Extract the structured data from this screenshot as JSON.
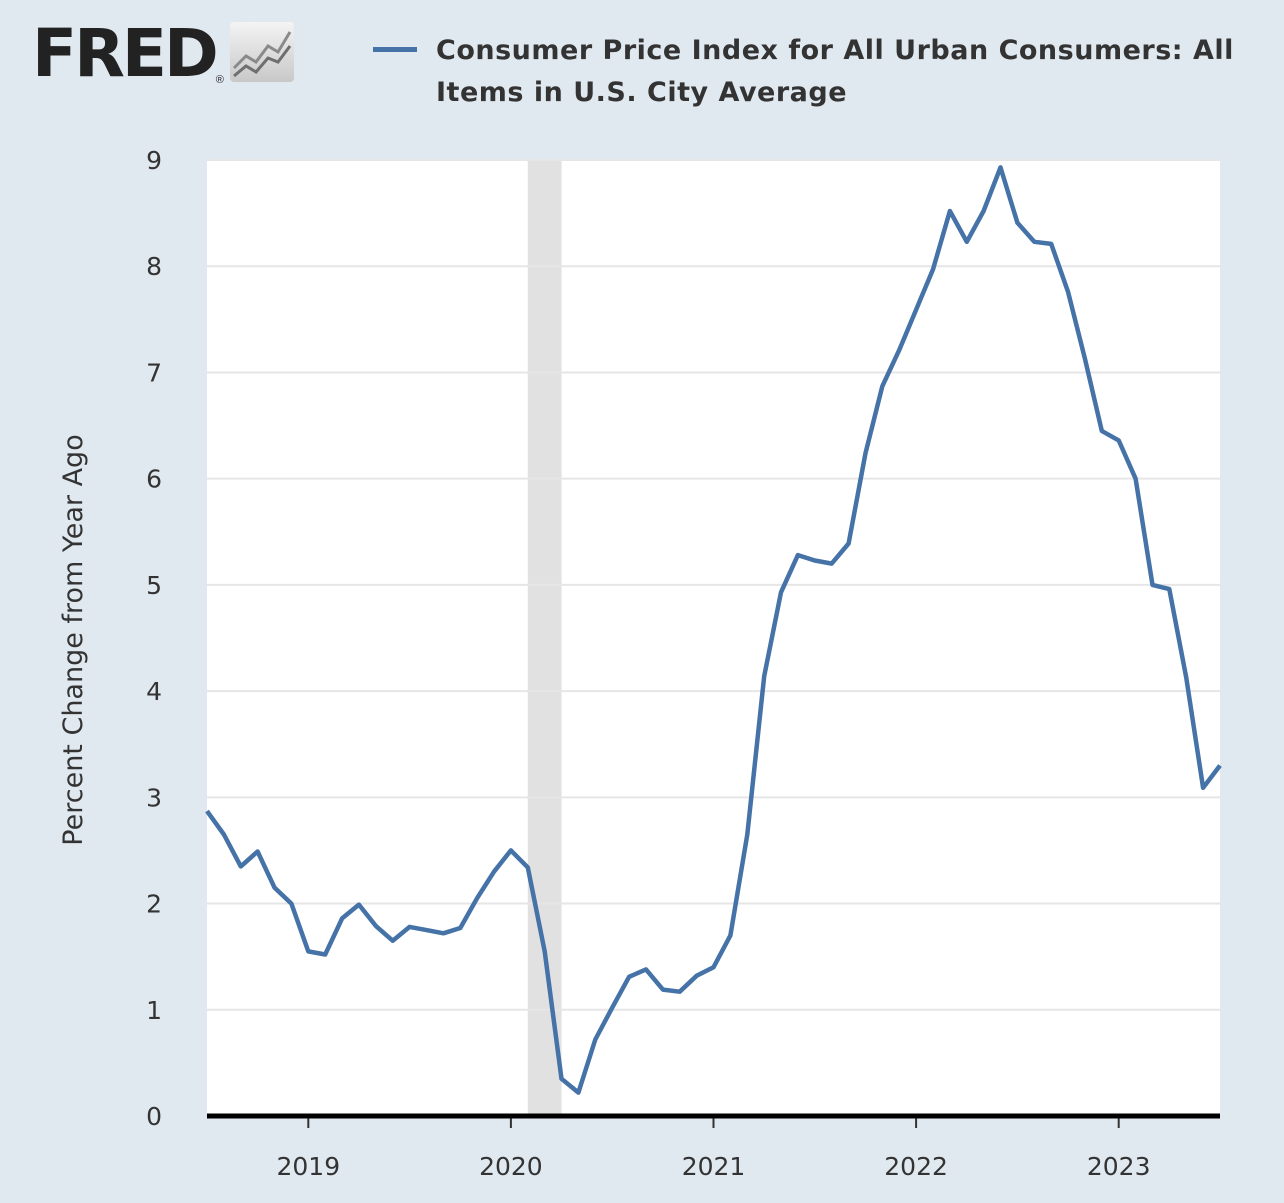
{
  "logo": {
    "text": "FRED",
    "reg": "®"
  },
  "chart_data": {
    "type": "line",
    "title": "Consumer Price Index for All Urban Consumers: All Items in U.S. City Average",
    "ylabel": "Percent Change from Year Ago",
    "xlabel": "",
    "ylim": [
      0,
      9
    ],
    "yticks": [
      0,
      1,
      2,
      3,
      4,
      5,
      6,
      7,
      8,
      9
    ],
    "xticks": [
      "2019",
      "2020",
      "2021",
      "2022",
      "2023"
    ],
    "xrange": [
      "2018-07",
      "2023-07"
    ],
    "grid": true,
    "legend_placement": "top",
    "line_color": "#4572a7",
    "recession_color": "#e1e1e1",
    "recessions": [
      [
        "2020-02",
        "2020-04"
      ]
    ],
    "series": [
      {
        "name": "Consumer Price Index for All Urban Consumers: All Items in U.S. City Average",
        "start": "2018-07",
        "frequency": "monthly",
        "values": [
          2.87,
          2.65,
          2.35,
          2.49,
          2.15,
          2.0,
          1.55,
          1.52,
          1.86,
          1.99,
          1.79,
          1.65,
          1.78,
          1.75,
          1.72,
          1.77,
          2.05,
          2.3,
          2.5,
          2.34,
          1.55,
          0.35,
          0.22,
          0.72,
          1.02,
          1.31,
          1.38,
          1.19,
          1.17,
          1.32,
          1.4,
          1.7,
          2.65,
          4.14,
          4.93,
          5.28,
          5.23,
          5.2,
          5.39,
          6.24,
          6.87,
          7.21,
          7.59,
          7.97,
          8.52,
          8.23,
          8.52,
          8.93,
          8.41,
          8.23,
          8.21,
          7.76,
          7.13,
          6.45,
          6.36,
          6.0,
          5.0,
          4.96,
          4.13,
          3.09,
          3.3
        ]
      }
    ]
  }
}
